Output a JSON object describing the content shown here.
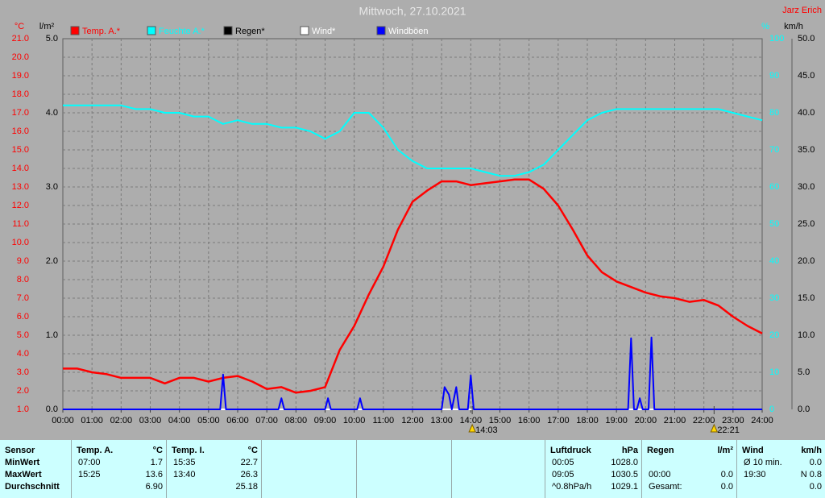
{
  "chart_data": {
    "type": "line",
    "title": "Mittwoch, 27.10.2021",
    "author": "Jarz Erich",
    "xlim": [
      0,
      24
    ],
    "xticks": [
      {
        "value": 0,
        "label": "00:00"
      },
      {
        "value": 1,
        "label": "01:00"
      },
      {
        "value": 2,
        "label": "02:00"
      },
      {
        "value": 3,
        "label": "03:00"
      },
      {
        "value": 4,
        "label": "04:00"
      },
      {
        "value": 5,
        "label": "05:00"
      },
      {
        "value": 6,
        "label": "06:00"
      },
      {
        "value": 7,
        "label": "07:00"
      },
      {
        "value": 8,
        "label": "08:00"
      },
      {
        "value": 9,
        "label": "09:00"
      },
      {
        "value": 10,
        "label": "10:00"
      },
      {
        "value": 11,
        "label": "11:00"
      },
      {
        "value": 12,
        "label": "12:00"
      },
      {
        "value": 13,
        "label": "13:00"
      },
      {
        "value": 14,
        "label": "14:00"
      },
      {
        "value": 15,
        "label": "15:00"
      },
      {
        "value": 16,
        "label": "16:00"
      },
      {
        "value": 17,
        "label": "17:00"
      },
      {
        "value": 18,
        "label": "18:00"
      },
      {
        "value": 19,
        "label": "19:00"
      },
      {
        "value": 20,
        "label": "20:00"
      },
      {
        "value": 21,
        "label": "21:00"
      },
      {
        "value": 22,
        "label": "22:00"
      },
      {
        "value": 23,
        "label": "23:00"
      },
      {
        "value": 24,
        "label": "24:00"
      }
    ],
    "grid": true,
    "y_axes": [
      {
        "label": "°C",
        "side": "left",
        "color": "#ff0000",
        "lim": [
          1,
          21
        ],
        "ticks": [
          {
            "value": 1,
            "label": "1.0"
          },
          {
            "value": 2,
            "label": "2.0"
          },
          {
            "value": 3,
            "label": "3.0"
          },
          {
            "value": 4,
            "label": "4.0"
          },
          {
            "value": 5,
            "label": "5.0"
          },
          {
            "value": 6,
            "label": "6.0"
          },
          {
            "value": 7,
            "label": "7.0"
          },
          {
            "value": 8,
            "label": "8.0"
          },
          {
            "value": 9,
            "label": "9.0"
          },
          {
            "value": 10,
            "label": "10.0"
          },
          {
            "value": 11,
            "label": "11.0"
          },
          {
            "value": 12,
            "label": "12.0"
          },
          {
            "value": 13,
            "label": "13.0"
          },
          {
            "value": 14,
            "label": "14.0"
          },
          {
            "value": 15,
            "label": "15.0"
          },
          {
            "value": 16,
            "label": "16.0"
          },
          {
            "value": 17,
            "label": "17.0"
          },
          {
            "value": 18,
            "label": "18.0"
          },
          {
            "value": 19,
            "label": "19.0"
          },
          {
            "value": 20,
            "label": "20.0"
          },
          {
            "value": 21,
            "label": "21.0"
          }
        ]
      },
      {
        "label": "l/m²",
        "side": "left",
        "color": "#000000",
        "lim": [
          0,
          5
        ],
        "ticks": [
          {
            "value": 0,
            "label": "0.0"
          },
          {
            "value": 1,
            "label": "1.0"
          },
          {
            "value": 2,
            "label": "2.0"
          },
          {
            "value": 3,
            "label": "3.0"
          },
          {
            "value": 4,
            "label": "4.0"
          },
          {
            "value": 5,
            "label": "5.0"
          }
        ]
      },
      {
        "label": "%",
        "side": "right",
        "color": "#00ffff",
        "lim": [
          0,
          100
        ],
        "ticks": [
          0,
          10,
          20,
          30,
          40,
          50,
          60,
          70,
          80,
          90,
          100
        ]
      },
      {
        "label": "km/h",
        "side": "right",
        "color": "#000000",
        "lim": [
          0,
          50
        ],
        "ticks": [
          {
            "value": 0,
            "label": "0.0"
          },
          {
            "value": 5,
            "label": "5.0"
          },
          {
            "value": 10,
            "label": "10.0"
          },
          {
            "value": 15,
            "label": "15.0"
          },
          {
            "value": 20,
            "label": "20.0"
          },
          {
            "value": 25,
            "label": "25.0"
          },
          {
            "value": 30,
            "label": "30.0"
          },
          {
            "value": 35,
            "label": "35.0"
          },
          {
            "value": 40,
            "label": "40.0"
          },
          {
            "value": 45,
            "label": "45.0"
          },
          {
            "value": 50,
            "label": "50.0"
          }
        ]
      }
    ],
    "x": [
      0,
      0.5,
      1,
      1.5,
      2,
      2.5,
      3,
      3.5,
      4,
      4.5,
      5,
      5.5,
      6,
      6.5,
      7,
      7.5,
      8,
      8.5,
      9,
      9.5,
      10,
      10.5,
      11,
      11.5,
      12,
      12.5,
      13,
      13.5,
      14,
      14.5,
      15,
      15.5,
      16,
      16.5,
      17,
      17.5,
      18,
      18.5,
      19,
      19.5,
      20,
      20.5,
      21,
      21.5,
      22,
      22.5,
      23,
      23.5,
      24
    ],
    "series": [
      {
        "name": "Temp. A.*",
        "color": "#ff0000",
        "label_color": "#ff0000",
        "axis": 0,
        "values": [
          3.2,
          3.2,
          3.0,
          2.9,
          2.7,
          2.7,
          2.7,
          2.4,
          2.7,
          2.7,
          2.5,
          2.7,
          2.8,
          2.5,
          2.1,
          2.2,
          1.9,
          2.0,
          2.2,
          4.2,
          5.5,
          7.2,
          8.7,
          10.7,
          12.2,
          12.8,
          13.3,
          13.3,
          13.1,
          13.2,
          13.3,
          13.4,
          13.4,
          12.9,
          12.0,
          10.7,
          9.3,
          8.4,
          7.9,
          7.6,
          7.3,
          7.1,
          7.0,
          6.8,
          6.9,
          6.6,
          6.0,
          5.5,
          5.1
        ]
      },
      {
        "name": "Feuchte A.*",
        "color": "#00ffff",
        "label_color": "#00ffff",
        "axis": 2,
        "values": [
          82,
          82,
          82,
          82,
          82,
          81,
          81,
          80,
          80,
          79,
          79,
          77,
          78,
          77,
          77,
          76,
          76,
          75,
          73,
          75,
          80,
          80,
          76,
          70,
          67,
          65,
          65,
          65,
          65,
          64,
          63,
          63,
          64,
          66,
          70,
          74,
          78,
          80,
          81,
          81,
          81,
          81,
          81,
          81,
          81,
          81,
          80,
          79,
          78
        ]
      },
      {
        "name": "Regen*",
        "color": "#000000",
        "label_color": "#000000",
        "axis": 1,
        "x": [
          0,
          24
        ],
        "values": [
          0,
          0
        ]
      },
      {
        "name": "Wind*",
        "color": "#ffffff",
        "label_color": "#ffffff",
        "axis": 3,
        "x": [
          0,
          24
        ],
        "values": [
          0,
          0
        ]
      },
      {
        "name": "Windböen",
        "color": "#0000ff",
        "label_color": "#ffffff",
        "axis": 3,
        "x": [
          0,
          5.4,
          5.5,
          5.6,
          7.4,
          7.5,
          7.6,
          9.0,
          9.1,
          9.2,
          10.1,
          10.2,
          10.3,
          13.0,
          13.1,
          13.25,
          13.35,
          13.5,
          13.6,
          13.9,
          14.0,
          14.1,
          19.4,
          19.5,
          19.6,
          19.7,
          19.8,
          19.9,
          20.1,
          20.2,
          20.3,
          24
        ],
        "values": [
          0,
          0,
          4.7,
          0,
          0,
          1.5,
          0,
          0,
          1.5,
          0,
          0,
          1.5,
          0,
          0,
          3,
          2,
          0,
          3,
          0,
          0,
          4.6,
          0,
          0,
          9.6,
          0,
          0,
          1.5,
          0,
          0,
          9.7,
          0,
          0
        ]
      }
    ],
    "annotations": [
      {
        "x": 14.05,
        "label": "14:03"
      },
      {
        "x": 22.35,
        "label": "22:21"
      }
    ]
  },
  "table": {
    "sensor": {
      "header": "Sensor",
      "rows": [
        "MinWert",
        "MaxWert",
        "Durchschnitt"
      ]
    },
    "temp_a": {
      "header": "Temp. A.",
      "unit": "°C",
      "rows": [
        {
          "time": "07:00",
          "value": "1.7"
        },
        {
          "time": "15:25",
          "value": "13.6"
        },
        {
          "value": "6.90"
        }
      ]
    },
    "temp_i": {
      "header": "Temp. I.",
      "unit": "°C",
      "rows": [
        {
          "time": "15:35",
          "value": "22.7"
        },
        {
          "time": "13:40",
          "value": "26.3"
        },
        {
          "value": "25.18"
        }
      ]
    },
    "pressure": {
      "header": "Luftdruck",
      "unit": "hPa",
      "rows": [
        {
          "time": "00:05",
          "value": "1028.0"
        },
        {
          "time": "09:05",
          "value": "1030.5"
        },
        {
          "time": "^0.8hPa/h",
          "value": "1029.1"
        }
      ]
    },
    "rain": {
      "header": "Regen",
      "unit": "l/m²",
      "rows": [
        {
          "time": "00:00",
          "value": "0.0"
        },
        {
          "time": "Gesamt:",
          "value": "0.0"
        }
      ]
    },
    "wind": {
      "header": "Wind",
      "unit": "km/h",
      "rows": [
        {
          "time": "Ø 10 min.",
          "value": "0.0"
        },
        {
          "time": "19:30",
          "value": "N 0.8"
        },
        {
          "value": "0.0"
        }
      ]
    }
  }
}
